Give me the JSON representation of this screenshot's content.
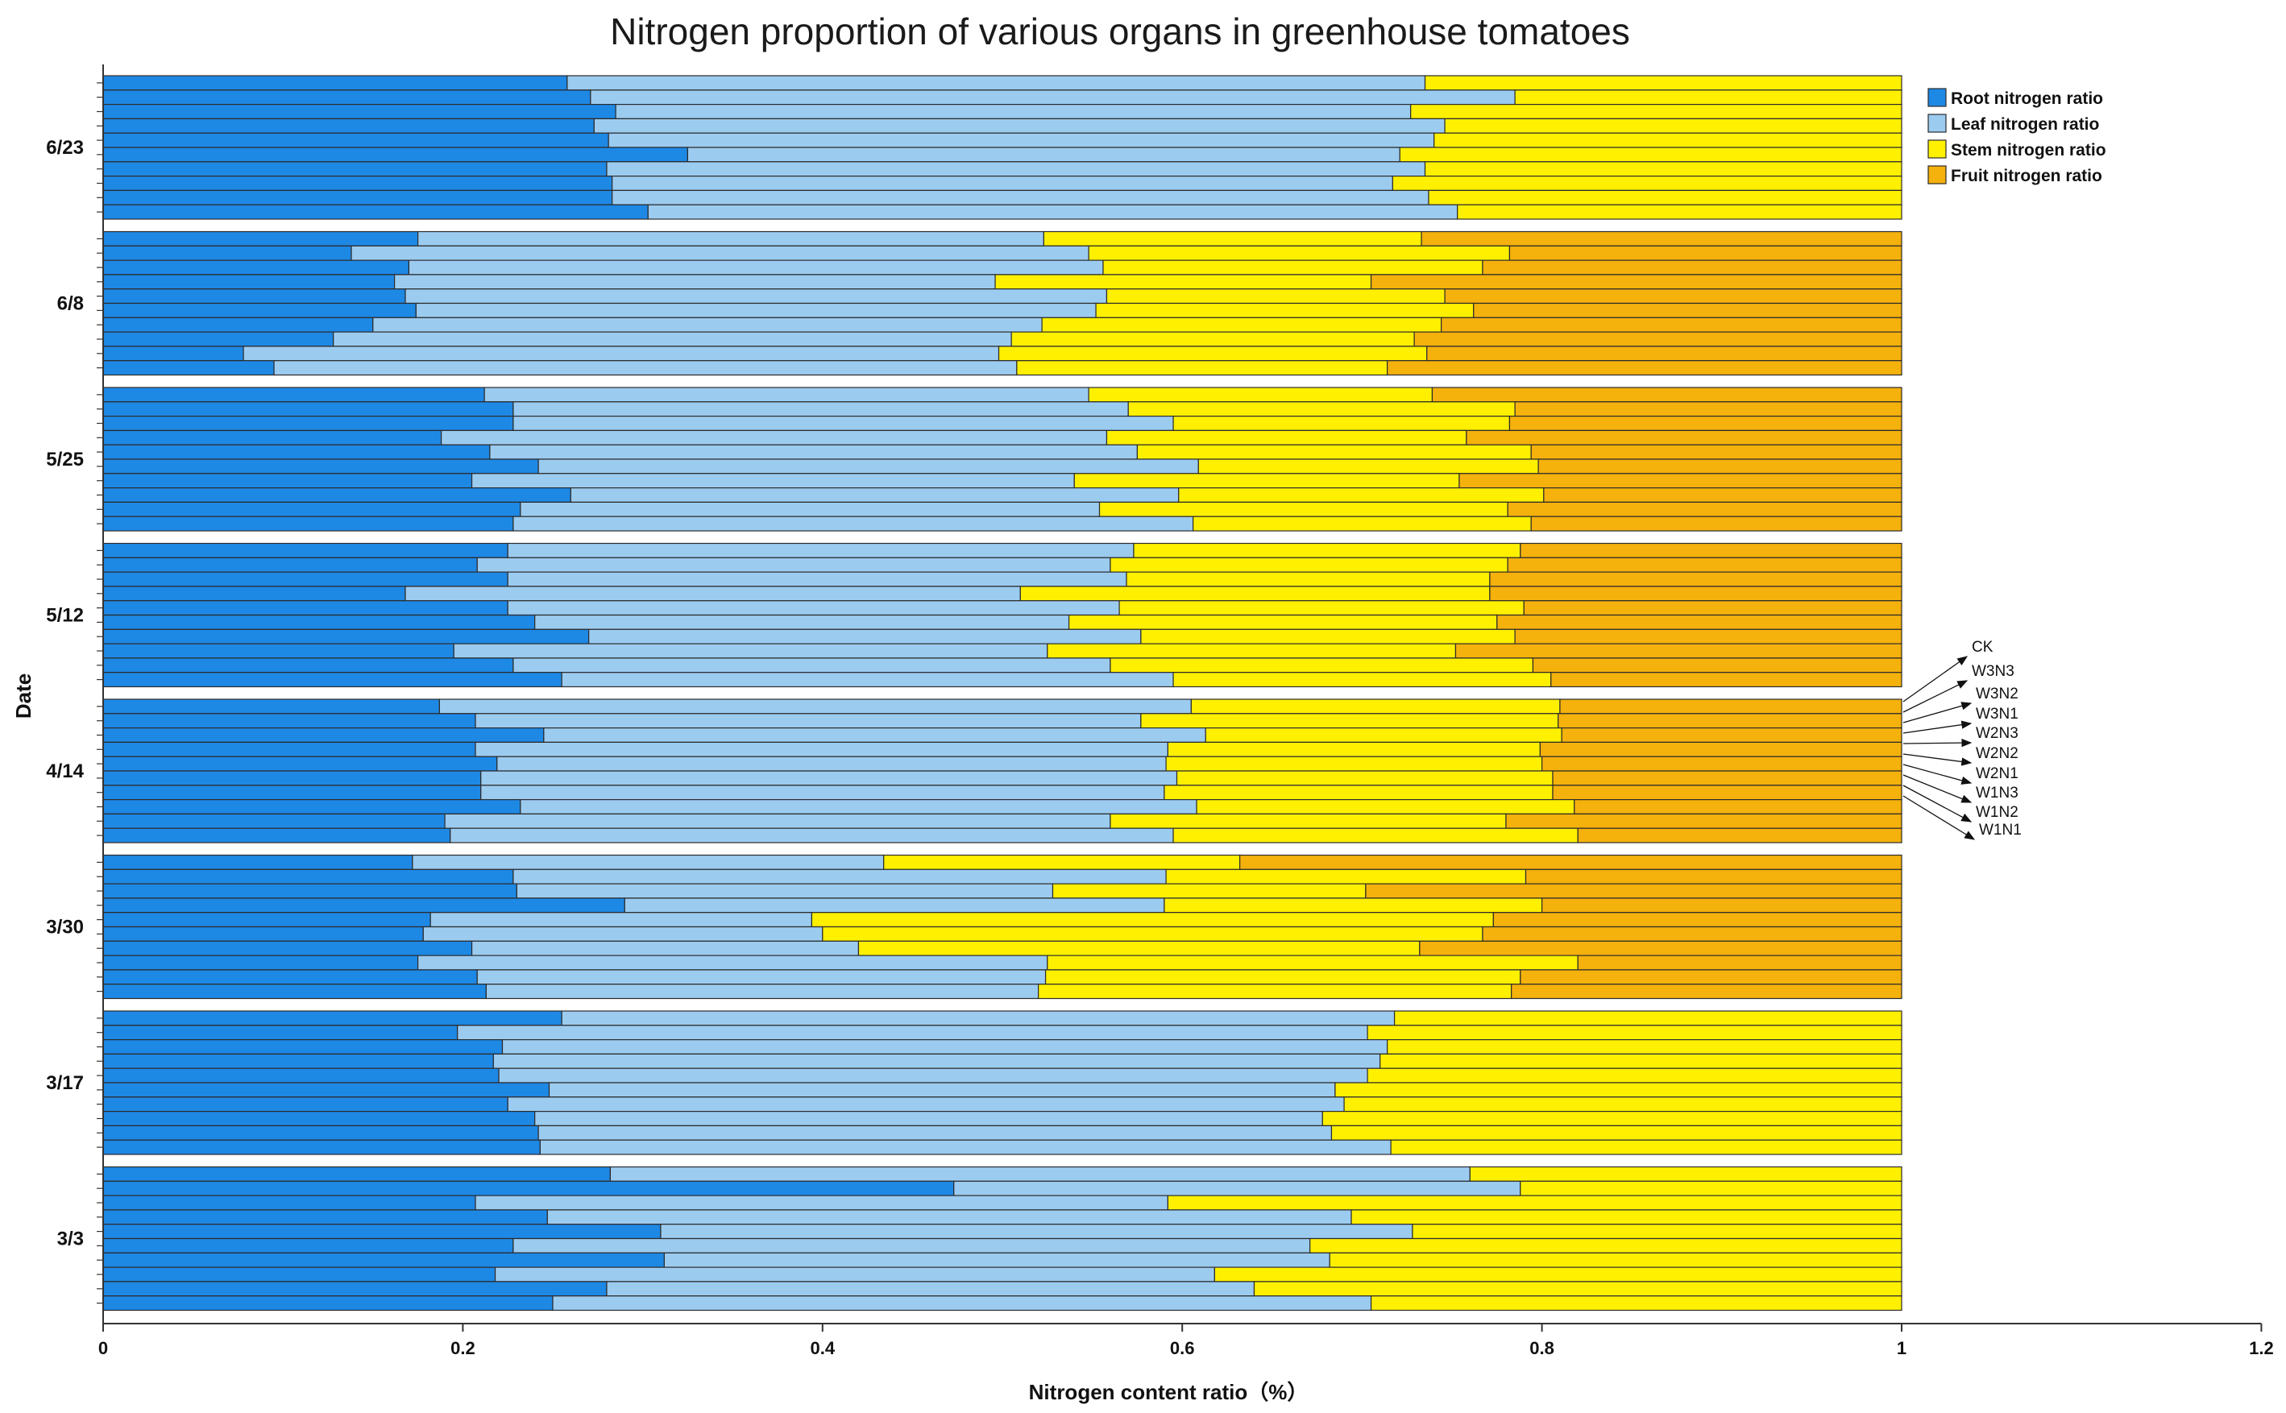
{
  "chart_data": {
    "type": "bar",
    "orientation": "horizontal",
    "stacked": true,
    "title": "Nitrogen proportion of various organs in greenhouse tomatoes",
    "xlabel": "Nitrogen content ratio（%）",
    "ylabel": "Date",
    "xlim": [
      0,
      1.2
    ],
    "x_ticks": [
      "0",
      "0.2",
      "0.4",
      "0.6",
      "0.8",
      "1",
      "1.2"
    ],
    "grid": false,
    "legend_position": "top-right",
    "treatments": [
      "CK",
      "W3N3",
      "W3N2",
      "W3N1",
      "W2N3",
      "W2N2",
      "W2N1",
      "W1N3",
      "W1N2",
      "W1N1"
    ],
    "series": [
      {
        "name": "Root nitrogen ratio",
        "color": "#1e88e5"
      },
      {
        "name": "Leaf nitrogen ratio",
        "color": "#9ccbf0"
      },
      {
        "name": "Stem nitrogen ratio",
        "color": "#fff000"
      },
      {
        "name": "Fruit nitrogen ratio",
        "color": "#f5b10c"
      }
    ],
    "groups": [
      {
        "date": "6/23",
        "bars": [
          [
            0.258,
            0.477,
            0.265,
            0
          ],
          [
            0.271,
            0.514,
            0.215,
            0
          ],
          [
            0.285,
            0.442,
            0.273,
            0
          ],
          [
            0.273,
            0.473,
            0.254,
            0
          ],
          [
            0.281,
            0.459,
            0.26,
            0
          ],
          [
            0.325,
            0.396,
            0.279,
            0
          ],
          [
            0.28,
            0.455,
            0.265,
            0
          ],
          [
            0.283,
            0.434,
            0.283,
            0
          ],
          [
            0.283,
            0.454,
            0.263,
            0
          ],
          [
            0.303,
            0.45,
            0.247,
            0
          ]
        ]
      },
      {
        "date": "6/8",
        "bars": [
          [
            0.175,
            0.348,
            0.21,
            0.267
          ],
          [
            0.138,
            0.41,
            0.234,
            0.218
          ],
          [
            0.17,
            0.386,
            0.211,
            0.233
          ],
          [
            0.162,
            0.334,
            0.209,
            0.295
          ],
          [
            0.168,
            0.39,
            0.188,
            0.254
          ],
          [
            0.174,
            0.378,
            0.21,
            0.238
          ],
          [
            0.15,
            0.372,
            0.222,
            0.256
          ],
          [
            0.128,
            0.377,
            0.224,
            0.271
          ],
          [
            0.078,
            0.42,
            0.238,
            0.264
          ],
          [
            0.095,
            0.413,
            0.206,
            0.286
          ]
        ]
      },
      {
        "date": "5/25",
        "bars": [
          [
            0.212,
            0.336,
            0.191,
            0.261
          ],
          [
            0.228,
            0.342,
            0.215,
            0.215
          ],
          [
            0.228,
            0.367,
            0.187,
            0.218
          ],
          [
            0.188,
            0.37,
            0.2,
            0.242
          ],
          [
            0.215,
            0.36,
            0.219,
            0.206
          ],
          [
            0.242,
            0.367,
            0.189,
            0.202
          ],
          [
            0.205,
            0.335,
            0.214,
            0.246
          ],
          [
            0.26,
            0.338,
            0.203,
            0.199
          ],
          [
            0.232,
            0.322,
            0.227,
            0.219
          ],
          [
            0.228,
            0.378,
            0.188,
            0.206
          ]
        ]
      },
      {
        "date": "5/12",
        "bars": [
          [
            0.225,
            0.348,
            0.215,
            0.212
          ],
          [
            0.208,
            0.352,
            0.221,
            0.219
          ],
          [
            0.225,
            0.344,
            0.202,
            0.229
          ],
          [
            0.168,
            0.342,
            0.261,
            0.229
          ],
          [
            0.225,
            0.34,
            0.225,
            0.21
          ],
          [
            0.24,
            0.297,
            0.238,
            0.225
          ],
          [
            0.27,
            0.307,
            0.208,
            0.215
          ],
          [
            0.195,
            0.33,
            0.227,
            0.248
          ],
          [
            0.228,
            0.332,
            0.235,
            0.205
          ],
          [
            0.255,
            0.34,
            0.21,
            0.195
          ]
        ]
      },
      {
        "date": "4/14",
        "bars": [
          [
            0.187,
            0.418,
            0.205,
            0.19
          ],
          [
            0.207,
            0.37,
            0.232,
            0.191
          ],
          [
            0.245,
            0.368,
            0.198,
            0.189
          ],
          [
            0.207,
            0.385,
            0.207,
            0.201
          ],
          [
            0.219,
            0.372,
            0.209,
            0.2
          ],
          [
            0.21,
            0.387,
            0.209,
            0.194
          ],
          [
            0.21,
            0.38,
            0.216,
            0.194
          ],
          [
            0.232,
            0.376,
            0.21,
            0.182
          ],
          [
            0.19,
            0.37,
            0.22,
            0.22
          ],
          [
            0.193,
            0.402,
            0.225,
            0.18
          ]
        ]
      },
      {
        "date": "3/30",
        "bars": [
          [
            0.172,
            0.262,
            0.198,
            0.368
          ],
          [
            0.228,
            0.363,
            0.2,
            0.209
          ],
          [
            0.23,
            0.298,
            0.174,
            0.298
          ],
          [
            0.29,
            0.3,
            0.21,
            0.2
          ],
          [
            0.182,
            0.212,
            0.379,
            0.227
          ],
          [
            0.178,
            0.222,
            0.367,
            0.233
          ],
          [
            0.205,
            0.215,
            0.312,
            0.268
          ],
          [
            0.175,
            0.35,
            0.295,
            0.18
          ],
          [
            0.208,
            0.316,
            0.264,
            0.212
          ],
          [
            0.213,
            0.307,
            0.263,
            0.217
          ]
        ]
      },
      {
        "date": "3/17",
        "bars": [
          [
            0.255,
            0.463,
            0.282,
            0
          ],
          [
            0.197,
            0.506,
            0.297,
            0
          ],
          [
            0.222,
            0.492,
            0.286,
            0
          ],
          [
            0.217,
            0.493,
            0.29,
            0
          ],
          [
            0.22,
            0.483,
            0.297,
            0
          ],
          [
            0.248,
            0.437,
            0.315,
            0
          ],
          [
            0.225,
            0.465,
            0.31,
            0
          ],
          [
            0.24,
            0.438,
            0.322,
            0
          ],
          [
            0.242,
            0.441,
            0.317,
            0
          ],
          [
            0.243,
            0.473,
            0.284,
            0
          ]
        ]
      },
      {
        "date": "3/3",
        "bars": [
          [
            0.282,
            0.478,
            0.24,
            0
          ],
          [
            0.473,
            0.315,
            0.212,
            0
          ],
          [
            0.207,
            0.385,
            0.408,
            0
          ],
          [
            0.247,
            0.447,
            0.306,
            0
          ],
          [
            0.31,
            0.418,
            0.272,
            0
          ],
          [
            0.228,
            0.443,
            0.329,
            0
          ],
          [
            0.312,
            0.37,
            0.318,
            0
          ],
          [
            0.218,
            0.4,
            0.382,
            0
          ],
          [
            0.28,
            0.36,
            0.36,
            0
          ],
          [
            0.25,
            0.455,
            0.295,
            0
          ]
        ]
      }
    ]
  }
}
